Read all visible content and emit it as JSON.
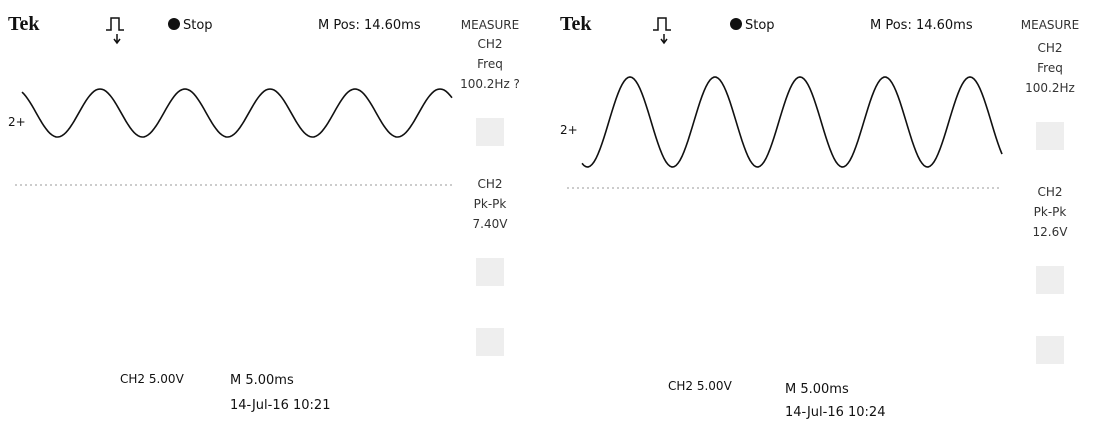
{
  "panels": [
    {
      "brand": "Tek",
      "status": "Stop",
      "mpos": "M Pos: 14.60ms",
      "measure": {
        "title": "MEASURE",
        "items": [
          {
            "source": "CH2",
            "type": "Freq",
            "value": "100.2Hz ?"
          },
          {
            "source": "CH2",
            "type": "Pk-Pk",
            "value": "7.40V"
          }
        ]
      },
      "channel_marker": "2+",
      "footer": {
        "channel": "CH2  5.00V",
        "timebase": "M 5.00ms",
        "timestamp": "14-Jul-16 10:21"
      }
    },
    {
      "brand": "Tek",
      "status": "Stop",
      "mpos": "M Pos: 14.60ms",
      "measure": {
        "title": "MEASURE",
        "items": [
          {
            "source": "CH2",
            "type": "Freq",
            "value": "100.2Hz"
          },
          {
            "source": "CH2",
            "type": "Pk-Pk",
            "value": "12.6V"
          }
        ]
      },
      "channel_marker": "2+",
      "footer": {
        "channel": "CH2  5.00V",
        "timebase": "M 5.00ms",
        "timestamp": "14-Jul-16 10:24"
      }
    }
  ]
}
